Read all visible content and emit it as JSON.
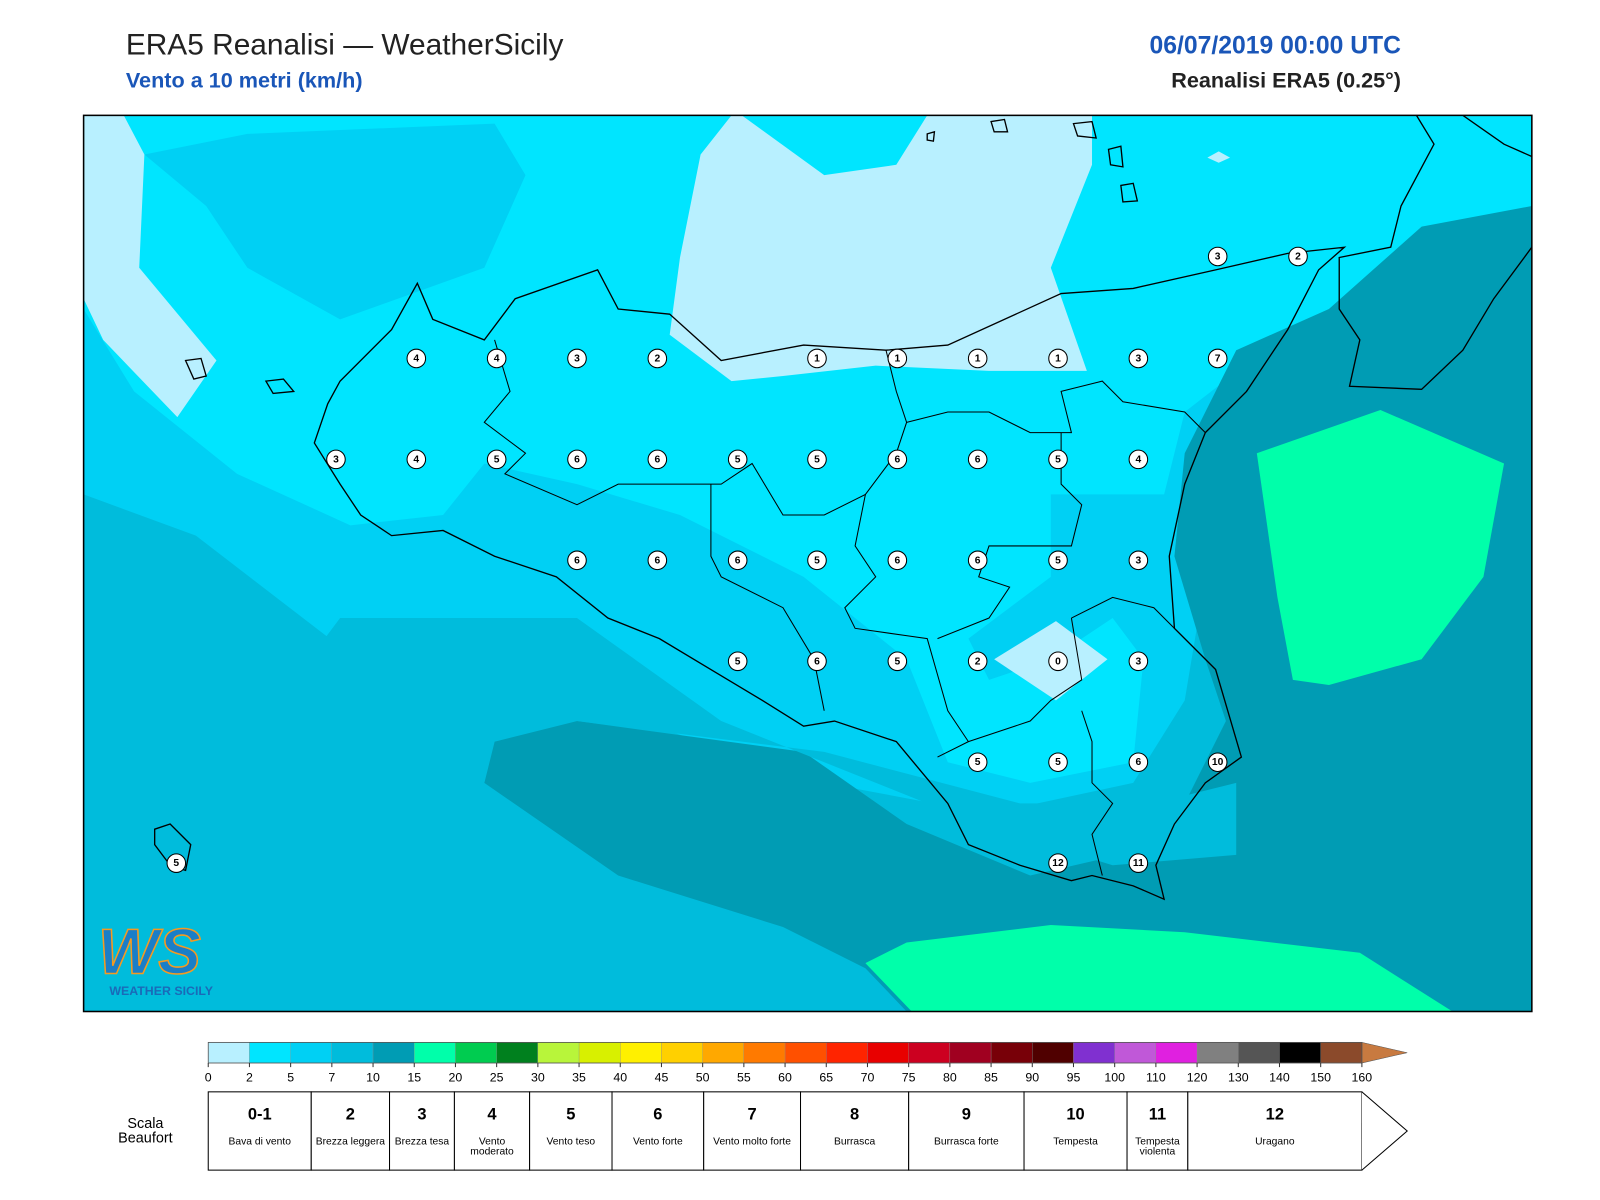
{
  "header": {
    "title": "ERA5 Reanalisi — WeatherSicily",
    "subtitle": "Vento a 10 metri (km/h)",
    "datetime": "06/07/2019 00:00 UTC",
    "source": "Reanalisi ERA5 (0.25°)"
  },
  "stations": [
    3,
    2,
    4,
    4,
    3,
    2,
    1,
    1,
    1,
    1,
    3,
    7,
    3,
    4,
    5,
    6,
    6,
    5,
    5,
    6,
    6,
    5,
    4,
    6,
    6,
    6,
    5,
    6,
    6,
    5,
    3,
    5,
    6,
    5,
    2,
    0,
    3,
    5,
    5,
    6,
    10,
    5,
    12,
    11
  ],
  "colorbar": {
    "ticks": [
      0,
      2,
      5,
      7,
      10,
      15,
      20,
      25,
      30,
      35,
      40,
      45,
      50,
      55,
      60,
      65,
      70,
      75,
      80,
      85,
      90,
      95,
      100,
      110,
      120,
      130,
      140,
      150,
      160
    ],
    "colors": [
      "#b8f0ff",
      "#00e5ff",
      "#00d0f4",
      "#00bcdc",
      "#009cb4",
      "#00ffaa",
      "#00cc50",
      "#00801e",
      "#b8f53a",
      "#d8f000",
      "#fff000",
      "#ffd000",
      "#ffa800",
      "#ff7a00",
      "#ff5000",
      "#ff2400",
      "#e80000",
      "#cc0020",
      "#a00020",
      "#780008",
      "#500000",
      "#8030d0",
      "#c058d8",
      "#e020e0",
      "#808080",
      "#555555",
      "#000000",
      "#8b4a2b"
    ],
    "over_color": "#c87a40"
  },
  "beaufort": {
    "label": "Scala Beaufort",
    "levels": [
      {
        "number": "0-1",
        "name": "Bava di vento"
      },
      {
        "number": 2,
        "name": "Brezza leggera"
      },
      {
        "number": 3,
        "name": "Brezza tesa"
      },
      {
        "number": 4,
        "name": "Vento moderato"
      },
      {
        "number": 5,
        "name": "Vento teso"
      },
      {
        "number": 6,
        "name": "Vento forte"
      },
      {
        "number": 7,
        "name": "Vento molto forte"
      },
      {
        "number": 8,
        "name": "Burrasca"
      },
      {
        "number": 9,
        "name": "Burrasca forte"
      },
      {
        "number": 10,
        "name": "Tempesta"
      },
      {
        "number": 11,
        "name": "Tempesta violenta"
      },
      {
        "number": 12,
        "name": "Uragano"
      }
    ]
  },
  "logo": {
    "mark": "WS",
    "text": "WEATHER SICILY"
  }
}
